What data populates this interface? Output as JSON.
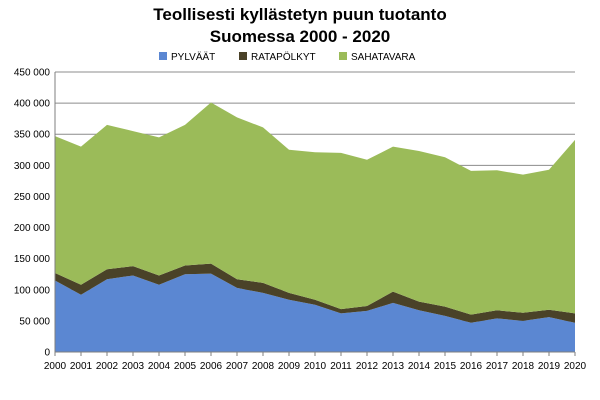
{
  "chart_data": {
    "type": "area",
    "stacked": true,
    "title_lines": [
      "Teollisesti kyllästetyn puun tuotanto",
      "Suomessa 2000 - 2020"
    ],
    "categories": [
      "2000",
      "2001",
      "2002",
      "2003",
      "2004",
      "2005",
      "2006",
      "2007",
      "2008",
      "2009",
      "2010",
      "2011",
      "2012",
      "2013",
      "2014",
      "2015",
      "2016",
      "2017",
      "2018",
      "2019",
      "2020"
    ],
    "series": [
      {
        "name": "PYLVÄÄT",
        "color": "#5b87d2",
        "values": [
          115000,
          92000,
          117000,
          123000,
          108000,
          125000,
          126000,
          103000,
          95000,
          84000,
          76000,
          62000,
          66000,
          79000,
          67000,
          58000,
          47000,
          54000,
          50000,
          56000,
          47000
        ]
      },
      {
        "name": "RATAPÖLKYT",
        "color": "#4a4228",
        "values": [
          12000,
          16000,
          16000,
          15000,
          15000,
          14000,
          16000,
          14000,
          16000,
          11000,
          8000,
          7000,
          8000,
          18000,
          14000,
          15000,
          13000,
          13000,
          13000,
          12000,
          15000
        ]
      },
      {
        "name": "SAHATAVARA",
        "color": "#9bbb59",
        "values": [
          220000,
          222000,
          232000,
          217000,
          222000,
          226000,
          259000,
          260000,
          250000,
          230000,
          237000,
          251000,
          235000,
          233000,
          242000,
          240000,
          231000,
          225000,
          222000,
          225000,
          279000
        ]
      }
    ],
    "yticks": [
      "0",
      "50 000",
      "100 000",
      "150 000",
      "200 000",
      "250 000",
      "300 000",
      "350 000",
      "400 000",
      "450 000"
    ],
    "ylim": [
      0,
      450000
    ],
    "grid": true,
    "legend_position": "top"
  }
}
